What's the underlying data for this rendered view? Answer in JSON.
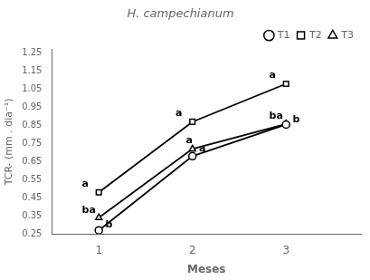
{
  "chart_data": {
    "type": "line",
    "title": "H. campechianum",
    "xlabel": "Meses",
    "ylabel": "TCR- (mm . dia⁻¹)",
    "x": [
      1,
      2,
      3
    ],
    "series": [
      {
        "name": "T1",
        "color": "#000000",
        "marker": "circle",
        "line_style": "solid",
        "values": [
          0.27,
          0.68,
          0.855
        ]
      },
      {
        "name": "T2",
        "color": "#000000",
        "marker": "square",
        "line_style": "solid",
        "values": [
          0.48,
          0.87,
          1.08
        ]
      },
      {
        "name": "T3",
        "color": "#000000",
        "marker": "triangle",
        "line_style": "solid",
        "values": [
          0.34,
          0.72,
          0.858
        ]
      }
    ],
    "xlim": [
      0.5,
      3.8
    ],
    "ylim": [
      0.25,
      1.27
    ],
    "xticks": [
      1,
      2,
      3
    ],
    "yticks": [
      0.25,
      0.35,
      0.45,
      0.55,
      0.65,
      0.75,
      0.85,
      0.95,
      1.05,
      1.15,
      1.25
    ],
    "grid": false,
    "legend": "top",
    "annotations": [
      {
        "text": "a",
        "x": 0.82,
        "y": 0.498
      },
      {
        "text": "ba",
        "x": 0.82,
        "y": 0.352
      },
      {
        "text": "b",
        "x": 1.07,
        "y": 0.272
      },
      {
        "text": "a",
        "x": 1.82,
        "y": 0.89
      },
      {
        "text": "a",
        "x": 1.93,
        "y": 0.738
      },
      {
        "text": "a",
        "x": 2.07,
        "y": 0.695
      },
      {
        "text": "a",
        "x": 2.82,
        "y": 1.1
      },
      {
        "text": "ba",
        "x": 2.82,
        "y": 0.875
      },
      {
        "text": "b",
        "x": 3.07,
        "y": 0.855
      }
    ]
  }
}
